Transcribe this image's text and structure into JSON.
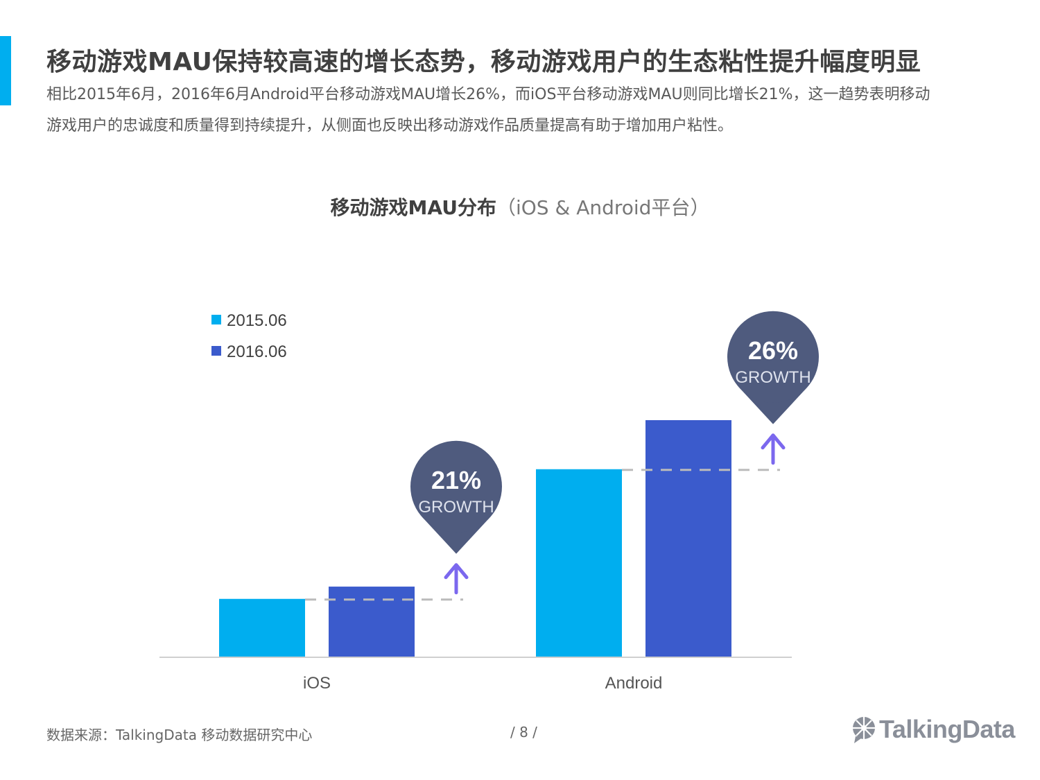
{
  "header": {
    "title": "移动游戏MAU保持较高速的增长态势，移动游戏用户的生态粘性提升幅度明显",
    "subtitle": "相比2015年6月，2016年6月Android平台移动游戏MAU增长26%，而iOS平台移动游戏MAU则同比增长21%，这一趋势表明移动游戏用户的忠诚度和质量得到持续提升，从侧面也反映出移动游戏作品质量提高有助于增加用户粘性。"
  },
  "chart_title": {
    "bold": "移动游戏MAU分布",
    "light": "（iOS & Android平台）"
  },
  "colors": {
    "series_2015": "#00aeef",
    "series_2016": "#3b5bcc",
    "bubble": "#4f5b7e",
    "arrow": "#7b68ee",
    "accent": "#00aeef"
  },
  "chart_data": {
    "type": "bar",
    "title": "移动游戏MAU分布（iOS & Android平台）",
    "categories": [
      "iOS",
      "Android"
    ],
    "series": [
      {
        "name": "2015.06",
        "values": [
          100,
          322
        ]
      },
      {
        "name": "2016.06",
        "values": [
          121,
          406
        ]
      }
    ],
    "ylim": [
      0,
      500
    ],
    "value_unit": "relative index (iOS 2015.06 = 100), estimated from bar heights",
    "annotations": [
      {
        "category": "iOS",
        "value": "21%",
        "label": "GROWTH"
      },
      {
        "category": "Android",
        "value": "26%",
        "label": "GROWTH"
      }
    ],
    "legend_position": "top-left",
    "grid": false
  },
  "footer": {
    "source": "数据来源：TalkingData  移动数据研究中心",
    "page": "/  8  /",
    "logo": "TalkingData"
  }
}
